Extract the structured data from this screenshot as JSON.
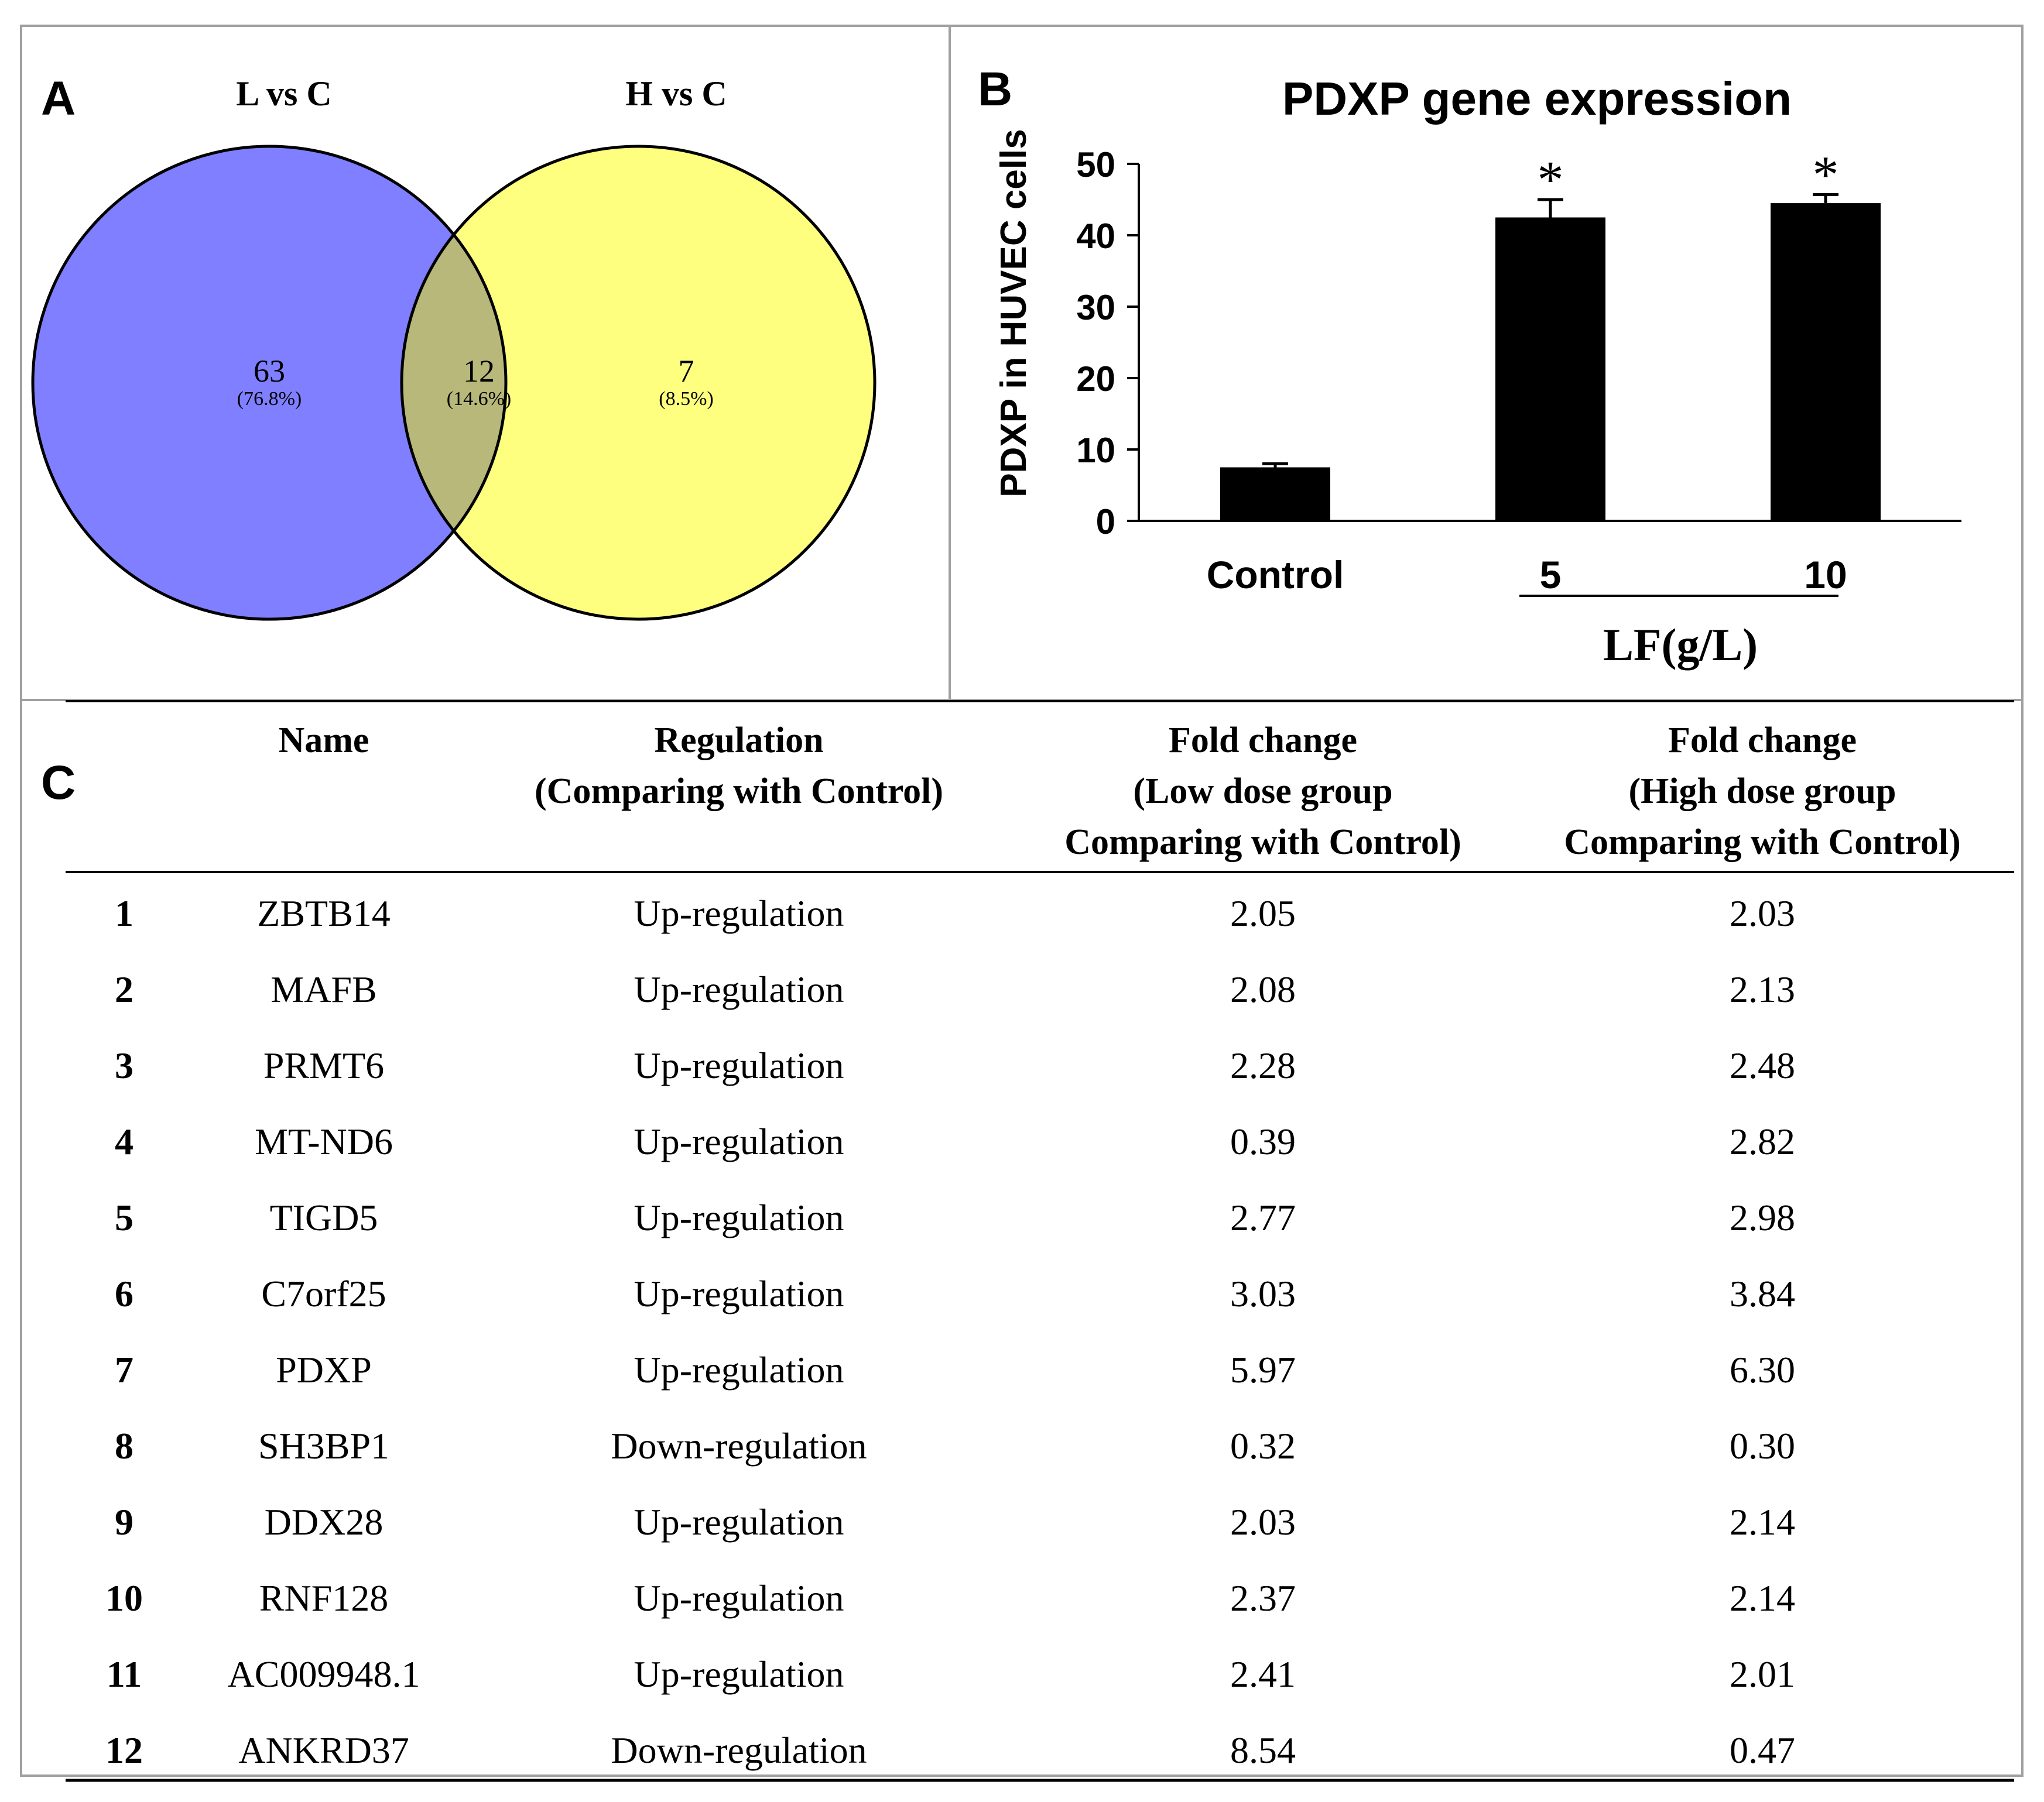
{
  "panels": {
    "a": {
      "label": "A"
    },
    "b": {
      "label": "B"
    },
    "c": {
      "label": "C"
    }
  },
  "venn": {
    "sets": [
      {
        "name": "L vs C",
        "color": "#7f7fff"
      },
      {
        "name": "H vs C",
        "color": "#ffff7f"
      }
    ],
    "overlap_color": "#b8b87a",
    "regions": [
      {
        "count": "63",
        "percent": "(76.8%)"
      },
      {
        "count": "12",
        "percent": "(14.6%)"
      },
      {
        "count": "7",
        "percent": "(8.5%)"
      }
    ]
  },
  "chart_data": {
    "type": "bar",
    "title": "PDXP gene expression",
    "ylabel": "PDXP in HUVEC cells",
    "xlabel": "LF(g/L)",
    "categories": [
      "Control",
      "5",
      "10"
    ],
    "values": [
      7.5,
      42.5,
      44.5
    ],
    "errors": [
      0.5,
      2.5,
      1.2
    ],
    "significance": [
      "",
      "*",
      "*"
    ],
    "yticks": [
      "0",
      "10",
      "20",
      "30",
      "40",
      "50"
    ],
    "ylim": [
      0,
      50
    ],
    "bar_color": "#000000"
  },
  "table": {
    "columns": [
      {
        "lines": [
          ""
        ]
      },
      {
        "lines": [
          "Name"
        ]
      },
      {
        "lines": [
          "Regulation",
          "(Comparing with Control)"
        ]
      },
      {
        "lines": [
          "Fold change",
          "(Low dose group",
          "Comparing with Control)"
        ]
      },
      {
        "lines": [
          "Fold change",
          "(High dose group",
          "Comparing with Control)"
        ]
      }
    ],
    "rows": [
      [
        "1",
        "ZBTB14",
        "Up-regulation",
        "2.05",
        "2.03"
      ],
      [
        "2",
        "MAFB",
        "Up-regulation",
        "2.08",
        "2.13"
      ],
      [
        "3",
        "PRMT6",
        "Up-regulation",
        "2.28",
        "2.48"
      ],
      [
        "4",
        "MT-ND6",
        "Up-regulation",
        "0.39",
        "2.82"
      ],
      [
        "5",
        "TIGD5",
        "Up-regulation",
        "2.77",
        "2.98"
      ],
      [
        "6",
        "C7orf25",
        "Up-regulation",
        "3.03",
        "3.84"
      ],
      [
        "7",
        "PDXP",
        "Up-regulation",
        "5.97",
        "6.30"
      ],
      [
        "8",
        "SH3BP1",
        "Down-regulation",
        "0.32",
        "0.30"
      ],
      [
        "9",
        "DDX28",
        "Up-regulation",
        "2.03",
        "2.14"
      ],
      [
        "10",
        "RNF128",
        "Up-regulation",
        "2.37",
        "2.14"
      ],
      [
        "11",
        "AC009948.1",
        "Up-regulation",
        "2.41",
        "2.01"
      ],
      [
        "12",
        "ANKRD37",
        "Down-regulation",
        "8.54",
        "0.47"
      ]
    ]
  }
}
